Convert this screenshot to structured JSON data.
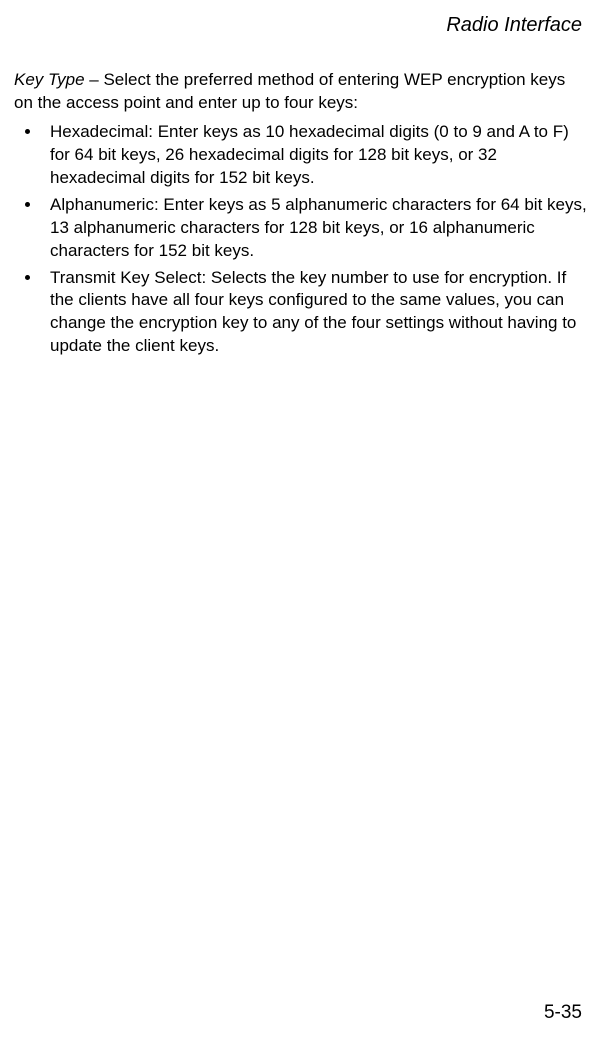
{
  "header": {
    "title": "Radio Interface"
  },
  "content": {
    "intro": {
      "term": "Key Type",
      "separator": " – ",
      "description": "Select the preferred method of entering WEP encryption keys on the access point and enter up to four keys:"
    },
    "bullets": [
      "Hexadecimal: Enter keys as 10 hexadecimal digits (0 to 9 and A to F) for 64 bit keys, 26 hexadecimal digits for 128 bit keys, or 32 hexadecimal digits for 152 bit keys.",
      "Alphanumeric: Enter keys as 5 alphanumeric characters for 64 bit keys, 13 alphanumeric characters for 128 bit keys, or 16 alphanumeric characters for 152 bit keys.",
      "Transmit Key Select: Selects the key number to use for encryption. If the clients have all four keys configured to the same values, you can change the encryption key to any of the four settings without having to update the client keys."
    ]
  },
  "footer": {
    "page_number": "5-35"
  },
  "styling": {
    "background_color": "#ffffff",
    "text_color": "#000000",
    "header_fontsize": 20,
    "body_fontsize": 17,
    "page_number_fontsize": 19,
    "font_family": "Arial, Helvetica, sans-serif"
  }
}
